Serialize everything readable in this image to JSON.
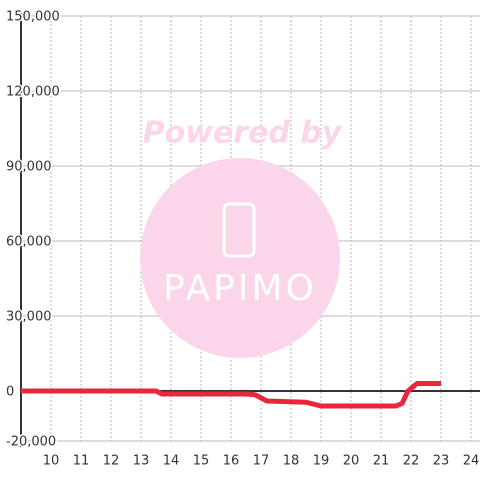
{
  "chart_data": {
    "type": "line",
    "watermark": [
      "Powered by",
      "PAPIMO"
    ],
    "x": [
      9,
      13.5,
      13.7,
      16.5,
      16.8,
      17.2,
      18.5,
      19,
      21.5,
      21.7,
      21.9,
      22.2,
      23
    ],
    "series": [
      {
        "color": "#e8283a",
        "values": [
          0,
          0,
          -1200,
          -1200,
          -1500,
          -4000,
          -4500,
          -6000,
          -6000,
          -5000,
          0,
          3000,
          3000
        ]
      }
    ],
    "xlim": [
      9,
      24.3
    ],
    "xticks": [
      10,
      11,
      12,
      13,
      14,
      15,
      16,
      17,
      18,
      19,
      20,
      21,
      22,
      23,
      24
    ],
    "ylim": [
      -20000,
      150000
    ],
    "yticks": [
      {
        "value": -20000,
        "label": "-20,000"
      },
      0,
      {
        "value": 30000,
        "label": "30,000"
      },
      {
        "value": 60000,
        "label": "60,000"
      },
      {
        "value": 90000,
        "label": "90,000"
      },
      {
        "value": 120000,
        "label": "120,000"
      },
      {
        "value": 150000,
        "label": "150,000"
      }
    ],
    "grid": true
  }
}
